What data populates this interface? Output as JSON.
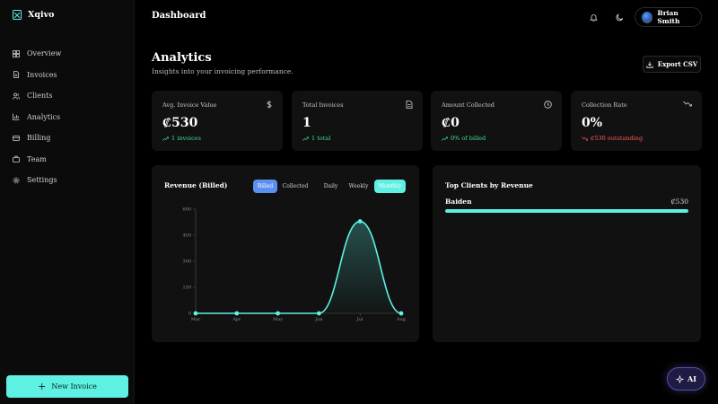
{
  "brand": {
    "name": "Xqivo"
  },
  "sidebar": {
    "items": [
      {
        "label": "Overview",
        "icon": "grid-icon"
      },
      {
        "label": "Invoices",
        "icon": "file-icon"
      },
      {
        "label": "Clients",
        "icon": "users-icon"
      },
      {
        "label": "Analytics",
        "icon": "bar-chart-icon"
      },
      {
        "label": "Billing",
        "icon": "credit-card-icon"
      },
      {
        "label": "Team",
        "icon": "team-icon"
      },
      {
        "label": "Settings",
        "icon": "gear-icon"
      }
    ],
    "new_invoice_label": "New Invoice"
  },
  "header": {
    "title": "Dashboard",
    "user_name": "Brian Smith"
  },
  "page": {
    "title": "Analytics",
    "subtitle": "Insights into your invoicing performance.",
    "export_label": "Export CSV"
  },
  "stats": [
    {
      "label": "Avg. Invoice Value",
      "value": "₡530",
      "trend": "1 invoices",
      "trend_dir": "up",
      "icon": "dollar-icon"
    },
    {
      "label": "Total Invoices",
      "value": "1",
      "trend": "1 total",
      "trend_dir": "up",
      "icon": "document-icon"
    },
    {
      "label": "Amount Collected",
      "value": "₡0",
      "trend": "0% of billed",
      "trend_dir": "up",
      "icon": "clock-icon"
    },
    {
      "label": "Collection Rate",
      "value": "0%",
      "trend": "₡530 outstanding",
      "trend_dir": "down",
      "icon": "trending-down-icon"
    }
  ],
  "revenue": {
    "title": "Revenue (Billed)",
    "toggles": [
      "Billed",
      "Collected",
      "Daily",
      "Weekly",
      "Monthly"
    ],
    "active_metric": "Billed",
    "active_period": "Monthly"
  },
  "chart_data": {
    "type": "area",
    "title": "Revenue (Billed)",
    "categories": [
      "Mar",
      "Apr",
      "May",
      "Jun",
      "Jul",
      "Aug"
    ],
    "values": [
      0,
      0,
      0,
      0,
      530,
      0
    ],
    "ylim": [
      0,
      600
    ],
    "yticks": [
      0,
      150,
      300,
      450,
      600
    ],
    "grid": false,
    "color": "#5ef0e3"
  },
  "top_clients": {
    "title": "Top Clients by Revenue",
    "clients": [
      {
        "name": "Baiden",
        "amount": "₡530",
        "share": 1.0
      }
    ]
  },
  "ai_label": "AI",
  "colors": {
    "accent": "#5ef0e3",
    "accent_blue": "#5b8ff0",
    "up": "#3ee08a",
    "down": "#ff5a5a"
  }
}
